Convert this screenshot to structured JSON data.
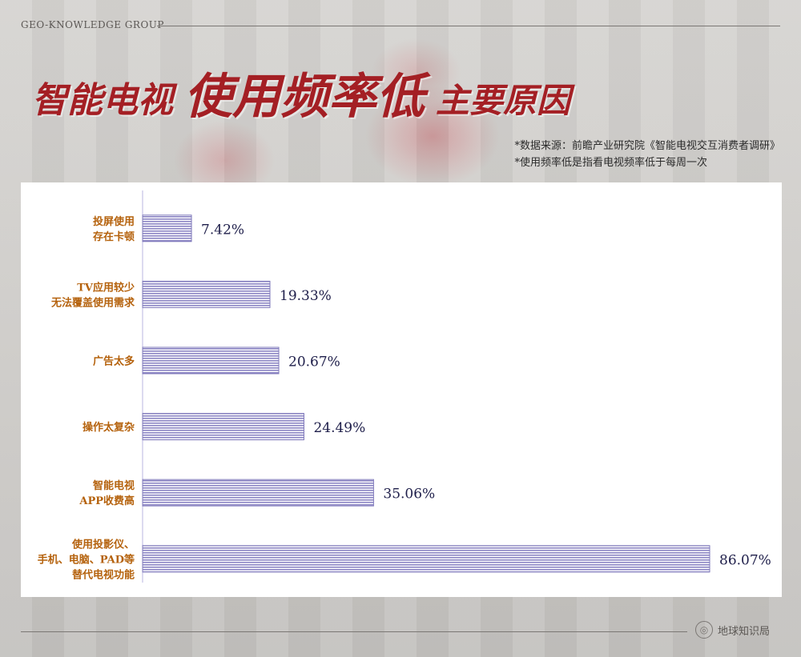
{
  "brand": "GEO-KNOWLEDGE GROUP",
  "title": {
    "part1": "智能电视",
    "part2": "使用频率低",
    "part3": "主要原因"
  },
  "notes": [
    "*数据来源：前瞻产业研究院《智能电视交互消费者调研》",
    "*使用频率低是指看电视频率低于每周一次"
  ],
  "footer": {
    "logo_text": "地球知识局"
  },
  "colors": {
    "title": "#a41f24",
    "label": "#b5620d",
    "bar": "#8c86c4",
    "value": "#1e1e4a"
  },
  "chart_data": {
    "type": "bar",
    "orientation": "horizontal",
    "categories": [
      [
        "投屏使用",
        "存在卡顿"
      ],
      [
        "TV应用较少",
        "无法覆盖使用需求"
      ],
      [
        "广告太多"
      ],
      [
        "操作太复杂"
      ],
      [
        "智能电视",
        "APP收费高"
      ],
      [
        "使用投影仪、",
        "手机、电脑、PAD等",
        "替代电视功能"
      ]
    ],
    "values": [
      7.42,
      19.33,
      20.67,
      24.49,
      35.06,
      86.07
    ],
    "value_labels": [
      "7.42%",
      "19.33%",
      "20.67%",
      "24.49%",
      "35.06%",
      "86.07%"
    ],
    "xlim": [
      0,
      86.07
    ],
    "grid": false,
    "legend": "none"
  }
}
